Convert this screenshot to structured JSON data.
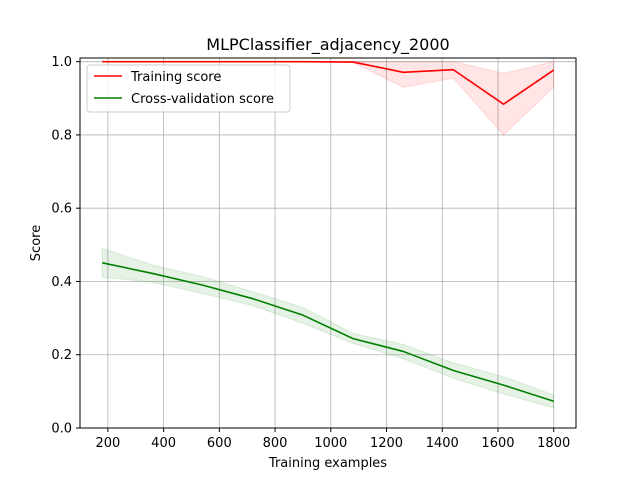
{
  "chart_data": {
    "type": "line",
    "title": "MLPClassifier_adjacency_2000",
    "xlabel": "Training examples",
    "ylabel": "Score",
    "xlim": [
      100,
      1880
    ],
    "ylim": [
      0.0,
      1.01
    ],
    "xticks": [
      200,
      400,
      600,
      800,
      1000,
      1200,
      1400,
      1600,
      1800
    ],
    "yticks": [
      0.0,
      0.2,
      0.4,
      0.6,
      0.8,
      1.0
    ],
    "xtick_labels": [
      "200",
      "400",
      "600",
      "800",
      "1000",
      "1200",
      "1400",
      "1600",
      "1800"
    ],
    "ytick_labels": [
      "0.0",
      "0.2",
      "0.4",
      "0.6",
      "0.8",
      "1.0"
    ],
    "grid": true,
    "legend_position": "top-left",
    "x": [
      180,
      360,
      540,
      720,
      900,
      1080,
      1260,
      1440,
      1620,
      1800
    ],
    "series": [
      {
        "name": "Training score",
        "color": "#ff0000",
        "values": [
          1.0,
          1.0,
          1.0,
          1.0,
          1.0,
          0.999,
          0.971,
          0.978,
          0.884,
          0.977
        ],
        "lower": [
          1.0,
          1.0,
          1.0,
          1.0,
          1.0,
          0.998,
          0.93,
          0.955,
          0.8,
          0.93
        ],
        "upper": [
          1.0,
          1.0,
          1.0,
          1.0,
          1.0,
          1.0,
          1.0,
          1.0,
          0.968,
          1.0
        ]
      },
      {
        "name": "Cross-validation score",
        "color": "#008000",
        "values": [
          0.451,
          0.422,
          0.39,
          0.353,
          0.308,
          0.244,
          0.209,
          0.157,
          0.117,
          0.073
        ],
        "lower": [
          0.412,
          0.398,
          0.367,
          0.334,
          0.286,
          0.231,
          0.189,
          0.136,
          0.093,
          0.055
        ],
        "upper": [
          0.49,
          0.445,
          0.413,
          0.372,
          0.329,
          0.258,
          0.228,
          0.178,
          0.14,
          0.09
        ]
      }
    ]
  }
}
